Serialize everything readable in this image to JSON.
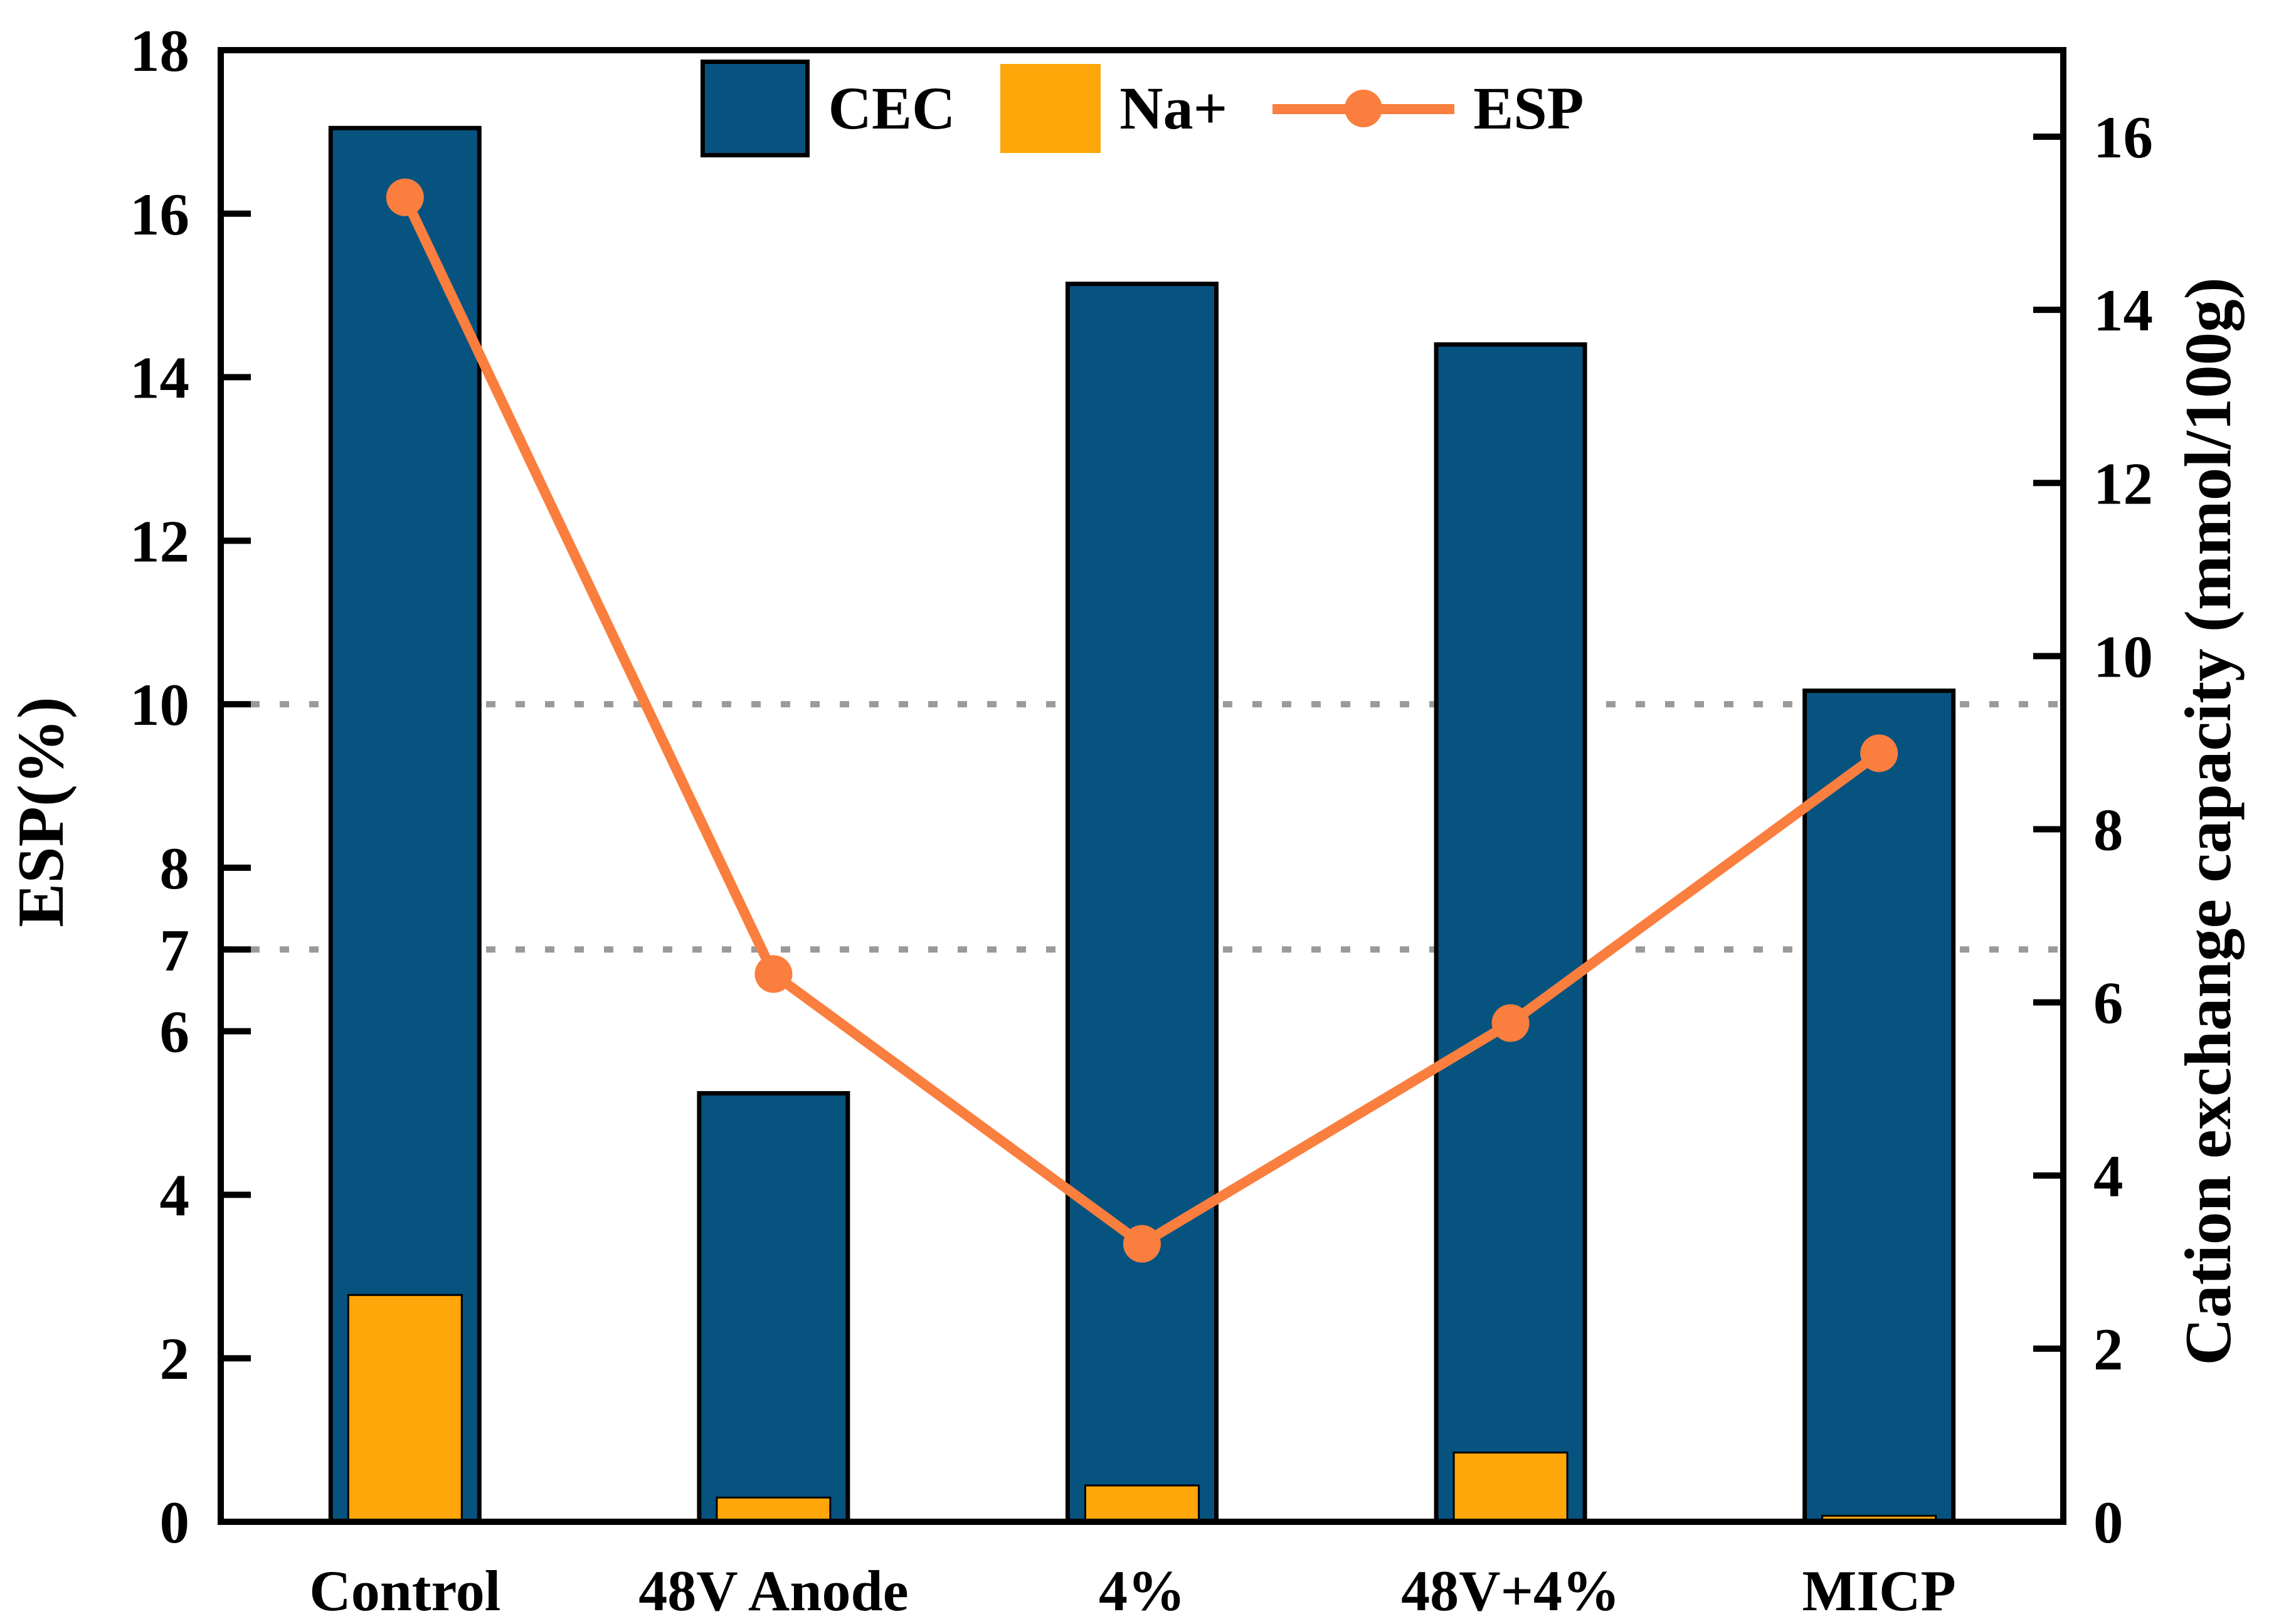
{
  "chart_data": {
    "type": "bar+line",
    "categories": [
      "Control",
      "48V Anode",
      "4%",
      "48V+4%",
      "MICP"
    ],
    "series": [
      {
        "name": "CEC",
        "type": "bar",
        "axis": "right",
        "color": "#075380",
        "values": [
          16.1,
          4.95,
          14.3,
          13.6,
          9.6
        ]
      },
      {
        "name": "Na+",
        "type": "bar",
        "axis": "right",
        "color": "#FFA60A",
        "values": [
          2.62,
          0.28,
          0.42,
          0.8,
          0.07
        ]
      },
      {
        "name": "ESP",
        "type": "line",
        "axis": "left",
        "color": "#FA7E3E",
        "values": [
          16.2,
          6.7,
          3.4,
          6.1,
          9.4
        ]
      }
    ],
    "left_axis": {
      "label": "ESP(%)",
      "min": 0,
      "max": 18,
      "ticks": [
        0,
        2,
        4,
        6,
        7,
        8,
        10,
        12,
        14,
        16,
        18
      ]
    },
    "right_axis": {
      "label": "Cation exchange capacity (mmol/100g)",
      "min": 0,
      "max": 17,
      "ticks": [
        0,
        2,
        4,
        6,
        8,
        10,
        12,
        14,
        16
      ]
    },
    "gridlines": {
      "axis": "left",
      "values": [
        7,
        10
      ],
      "style": "dotted",
      "color": "#9A9A9A"
    },
    "legend": {
      "position": "top-center",
      "entries": [
        "CEC",
        "Na+",
        "ESP"
      ]
    },
    "frame_color": "#000000"
  }
}
